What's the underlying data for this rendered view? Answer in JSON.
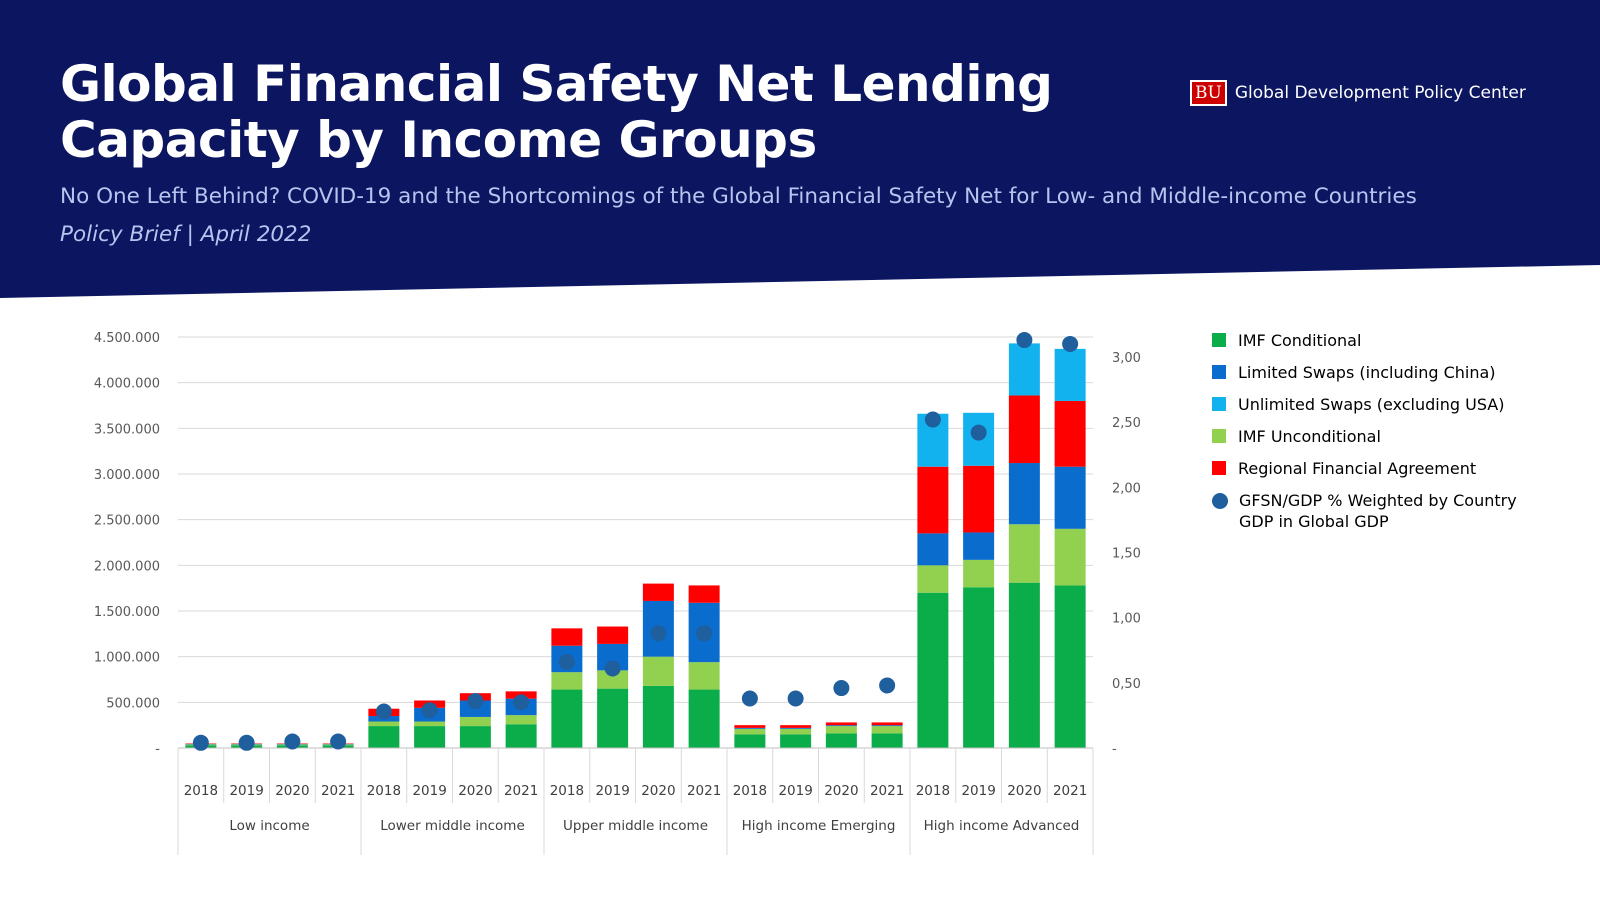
{
  "header": {
    "title": "Global Financial Safety Net Lending Capacity by Income Groups",
    "subtitle": "No One Left Behind? COVID-19 and the Shortcomings of the Global Financial Safety Net for Low- and Middle-income Countries",
    "brief": "Policy Brief | April 2022",
    "logo_badge": "BU",
    "logo_text": "Global Development Policy Center"
  },
  "colors": {
    "header_bg": "#0b1560",
    "imf_conditional": "#0aad4a",
    "limited_swaps": "#0a6ccc",
    "unlimited_swaps": "#12b2ee",
    "imf_unconditional": "#92d050",
    "regional": "#ff0000",
    "gfsn_gdp": "#1f5f9e"
  },
  "chart_data": {
    "type": "bar",
    "stacked": true,
    "groups": [
      {
        "name": "Low income",
        "years": [
          "2018",
          "2019",
          "2020",
          "2021"
        ]
      },
      {
        "name": "Lower middle income",
        "years": [
          "2018",
          "2019",
          "2020",
          "2021"
        ]
      },
      {
        "name": "Upper middle income",
        "years": [
          "2018",
          "2019",
          "2020",
          "2021"
        ]
      },
      {
        "name": "High income Emerging",
        "years": [
          "2018",
          "2019",
          "2020",
          "2021"
        ]
      },
      {
        "name": "High income Advanced",
        "years": [
          "2018",
          "2019",
          "2020",
          "2021"
        ]
      }
    ],
    "y_left": {
      "ylim": [
        0,
        4500000
      ],
      "ticks": [
        {
          "value": 0,
          "label": "-"
        },
        {
          "value": 500000,
          "label": "500.000"
        },
        {
          "value": 1000000,
          "label": "1.000.000"
        },
        {
          "value": 1500000,
          "label": "1.500.000"
        },
        {
          "value": 2000000,
          "label": "2.000.000"
        },
        {
          "value": 2500000,
          "label": "2.500.000"
        },
        {
          "value": 3000000,
          "label": "3.000.000"
        },
        {
          "value": 3500000,
          "label": "3.500.000"
        },
        {
          "value": 4000000,
          "label": "4.000.000"
        },
        {
          "value": 4500000,
          "label": "4.500.000"
        }
      ]
    },
    "y_right": {
      "ylim": [
        0,
        3.15
      ],
      "ticks": [
        {
          "value": 0,
          "label": "-"
        },
        {
          "value": 0.5,
          "label": "0,50"
        },
        {
          "value": 1.0,
          "label": "1,00"
        },
        {
          "value": 1.5,
          "label": "1,50"
        },
        {
          "value": 2.0,
          "label": "2,00"
        },
        {
          "value": 2.5,
          "label": "2,50"
        },
        {
          "value": 3.0,
          "label": "3,00"
        }
      ]
    },
    "grid": true,
    "legend_position": "right",
    "series": [
      {
        "name": "IMF Conditional",
        "color_key": "imf_conditional",
        "values": [
          30000,
          30000,
          30000,
          30000,
          240000,
          240000,
          240000,
          260000,
          640000,
          650000,
          680000,
          640000,
          150000,
          150000,
          160000,
          160000,
          1700000,
          1760000,
          1810000,
          1780000
        ]
      },
      {
        "name": "IMF Unconditional",
        "color_key": "imf_unconditional",
        "values": [
          10000,
          10000,
          10000,
          10000,
          50000,
          50000,
          100000,
          100000,
          190000,
          200000,
          320000,
          300000,
          60000,
          60000,
          80000,
          80000,
          300000,
          300000,
          640000,
          620000
        ]
      },
      {
        "name": "Limited Swaps (including China)",
        "color_key": "limited_swaps",
        "values": [
          5000,
          5000,
          5000,
          5000,
          60000,
          150000,
          180000,
          180000,
          290000,
          290000,
          610000,
          650000,
          10000,
          10000,
          10000,
          10000,
          350000,
          300000,
          670000,
          680000
        ]
      },
      {
        "name": "Regional Financial Agreement",
        "color_key": "regional",
        "values": [
          5000,
          5000,
          5000,
          5000,
          80000,
          80000,
          80000,
          80000,
          190000,
          190000,
          190000,
          190000,
          30000,
          30000,
          30000,
          30000,
          730000,
          730000,
          740000,
          720000
        ]
      },
      {
        "name": "Unlimited Swaps (excluding USA)",
        "color_key": "unlimited_swaps",
        "values": [
          0,
          0,
          0,
          0,
          0,
          0,
          0,
          0,
          0,
          0,
          0,
          0,
          0,
          0,
          0,
          0,
          580000,
          580000,
          570000,
          570000
        ]
      },
      {
        "name": "GFSN/GDP % Weighted by Country GDP in Global GDP",
        "color_key": "gfsn_gdp",
        "marker": "circle",
        "axis": "right",
        "values": [
          0.04,
          0.04,
          0.05,
          0.05,
          0.28,
          0.29,
          0.36,
          0.35,
          0.66,
          0.61,
          0.88,
          0.88,
          0.38,
          0.38,
          0.46,
          0.48,
          2.52,
          2.42,
          3.13,
          3.1
        ]
      }
    ],
    "legend": [
      {
        "name": "IMF Conditional",
        "color_key": "imf_conditional",
        "shape": "square"
      },
      {
        "name": "Limited Swaps (including China)",
        "color_key": "limited_swaps",
        "shape": "square"
      },
      {
        "name": "Unlimited Swaps (excluding USA)",
        "color_key": "unlimited_swaps",
        "shape": "square"
      },
      {
        "name": "IMF Unconditional",
        "color_key": "imf_unconditional",
        "shape": "square"
      },
      {
        "name": "Regional Financial Agreement",
        "color_key": "regional",
        "shape": "square"
      },
      {
        "name": "GFSN/GDP % Weighted by Country GDP in Global GDP",
        "color_key": "gfsn_gdp",
        "shape": "circle"
      }
    ]
  }
}
